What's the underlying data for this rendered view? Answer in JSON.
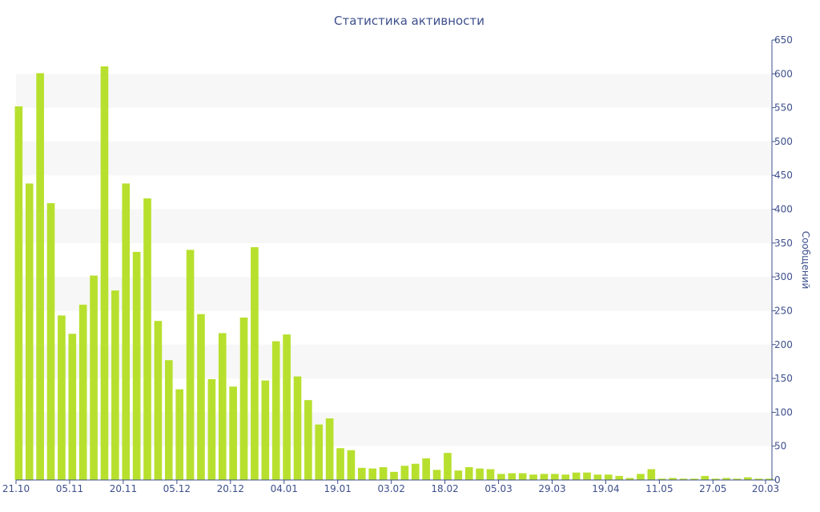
{
  "colors": {
    "bar": "#b7e02e",
    "axis": "#3d4f8c",
    "text": "#3d4f8c",
    "band": "#f7f7f7"
  },
  "chart_data": {
    "type": "bar",
    "title": "Статистика активности",
    "xlabel": "",
    "ylabel": "Сообщений",
    "ylim": [
      0,
      650
    ],
    "y_ticks": [
      0,
      50,
      100,
      150,
      200,
      250,
      300,
      350,
      400,
      450,
      500,
      550,
      600,
      650
    ],
    "y_axis_position": "right",
    "grid": "alternating horizontal bands",
    "legend": "none",
    "x_tick_labels": [
      {
        "index": 0,
        "label": "21.10"
      },
      {
        "index": 5,
        "label": "05.11"
      },
      {
        "index": 10,
        "label": "20.11"
      },
      {
        "index": 15,
        "label": "05.12"
      },
      {
        "index": 20,
        "label": "20.12"
      },
      {
        "index": 25,
        "label": "04.01"
      },
      {
        "index": 30,
        "label": "19.01"
      },
      {
        "index": 35,
        "label": "03.02"
      },
      {
        "index": 40,
        "label": "18.02"
      },
      {
        "index": 45,
        "label": "05.03"
      },
      {
        "index": 50,
        "label": "29.03"
      },
      {
        "index": 55,
        "label": "19.04"
      },
      {
        "index": 60,
        "label": "11.05"
      },
      {
        "index": 65,
        "label": "27.05"
      },
      {
        "index": 70,
        "label": "20.03"
      }
    ],
    "values": [
      552,
      438,
      601,
      409,
      243,
      216,
      259,
      302,
      611,
      280,
      438,
      337,
      416,
      235,
      177,
      134,
      340,
      245,
      149,
      217,
      138,
      240,
      344,
      147,
      205,
      215,
      153,
      118,
      82,
      91,
      47,
      44,
      18,
      17,
      19,
      12,
      21,
      24,
      32,
      15,
      40,
      14,
      19,
      17,
      16,
      9,
      10,
      10,
      8,
      9,
      9,
      8,
      11,
      11,
      8,
      8,
      6,
      3,
      9,
      16,
      2,
      3,
      2,
      2,
      6,
      2,
      3,
      2,
      4,
      2,
      2
    ]
  }
}
